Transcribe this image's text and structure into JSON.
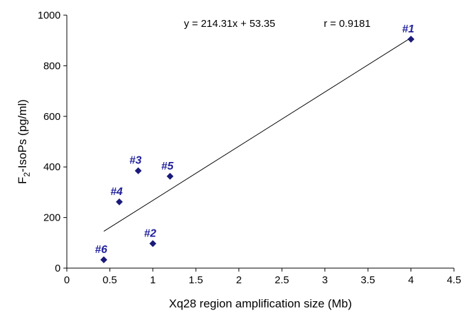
{
  "chart_data": {
    "type": "scatter",
    "title": "",
    "xlabel": "Xq28 region amplification size (Mb)",
    "ylabel": "F2-IsoPs (pg/ml)",
    "ylabel_main": "F",
    "ylabel_sub": "2",
    "ylabel_rest": "-IsoPs (pg/ml)",
    "xlim": [
      0,
      4.5
    ],
    "ylim": [
      0,
      1000
    ],
    "x_ticks": [
      0,
      0.5,
      1,
      1.5,
      2,
      2.5,
      3,
      3.5,
      4,
      4.5
    ],
    "x_tick_labels": [
      "0",
      "0.5",
      "1",
      "1.5",
      "2",
      "2.5",
      "3",
      "3.5",
      "4",
      "4.5"
    ],
    "y_ticks": [
      0,
      200,
      400,
      600,
      800,
      1000
    ],
    "y_tick_labels": [
      "0",
      "200",
      "400",
      "600",
      "800",
      "1000"
    ],
    "grid": false,
    "marker_color": "#1a1a7a",
    "label_color": "#1f1f9c",
    "points": [
      {
        "label": "#1",
        "x": 4.0,
        "y": 905
      },
      {
        "label": "#2",
        "x": 1.0,
        "y": 97
      },
      {
        "label": "#3",
        "x": 0.83,
        "y": 385
      },
      {
        "label": "#4",
        "x": 0.61,
        "y": 262
      },
      {
        "label": "#5",
        "x": 1.2,
        "y": 363
      },
      {
        "label": "#6",
        "x": 0.43,
        "y": 33
      }
    ],
    "trendline": {
      "slope": 214.31,
      "intercept": 53.35,
      "x_range": [
        0.43,
        4.0
      ]
    },
    "annotations": {
      "equation": "y = 214.31x + 53.35",
      "correlation": "r = 0.9181"
    }
  }
}
